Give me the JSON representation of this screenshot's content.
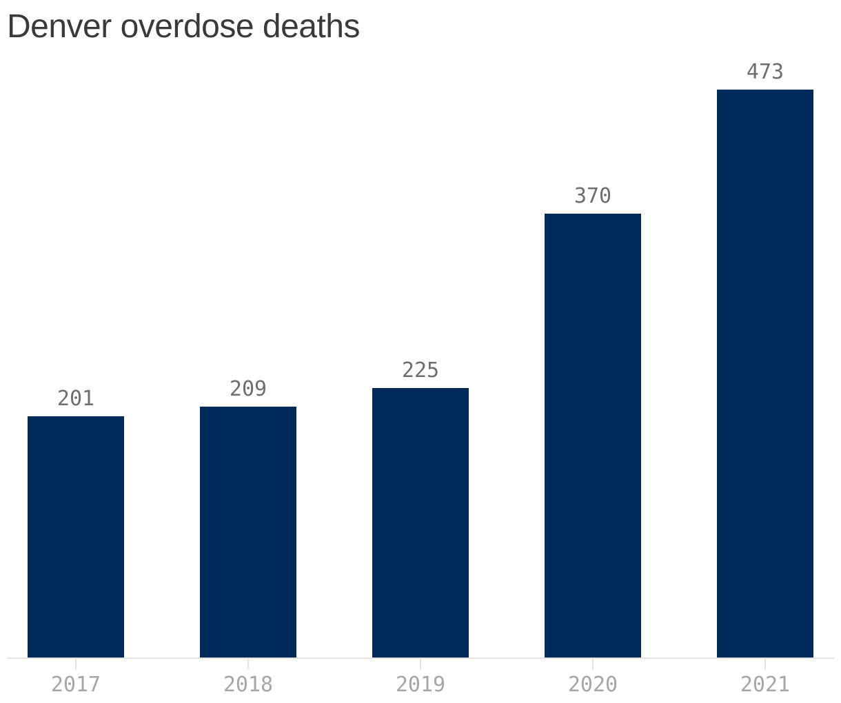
{
  "chart_data": {
    "type": "bar",
    "title": "Denver overdose deaths",
    "categories": [
      "2017",
      "2018",
      "2019",
      "2020",
      "2021"
    ],
    "values": [
      201,
      209,
      225,
      370,
      473
    ],
    "xlabel": "",
    "ylabel": "",
    "ylim": [
      0,
      473
    ],
    "grid": false,
    "legend": false,
    "layout": {
      "value_labels_position": "above-bars",
      "axis": "x-only"
    },
    "colors": {
      "bar": "#002a5a",
      "title": "#3a3a3a",
      "value_label": "#6e6e6e",
      "tick_label": "#a6a6a6",
      "axis_line": "#e4e4e4",
      "background": "#ffffff"
    }
  }
}
